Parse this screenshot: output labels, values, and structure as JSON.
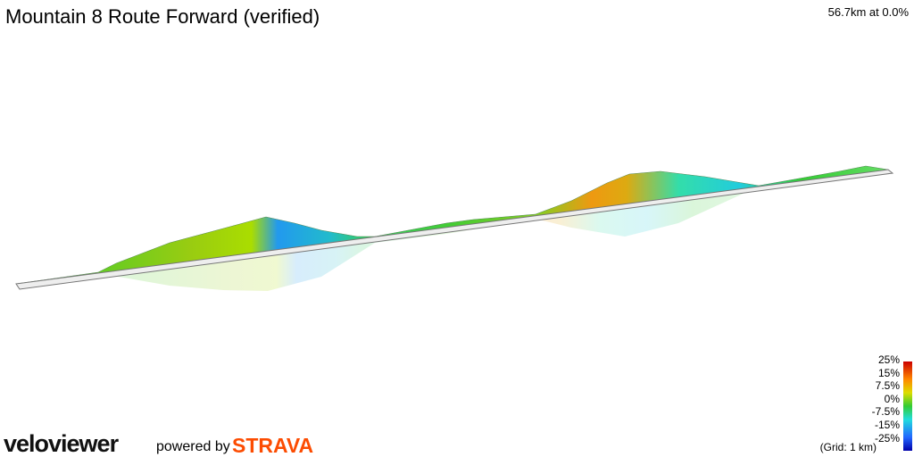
{
  "header": {
    "title": "Mountain 8 Route Forward (verified)",
    "status": "56.7km at 0.0%"
  },
  "legend": {
    "labels": [
      "25%",
      "15%",
      "7.5%",
      "0%",
      "-7.5%",
      "-15%",
      "-25%"
    ],
    "grid": "(Grid: 1 km)"
  },
  "footer": {
    "brand": "veloviewer",
    "powered": "powered by",
    "partner": "STRAVA"
  }
}
